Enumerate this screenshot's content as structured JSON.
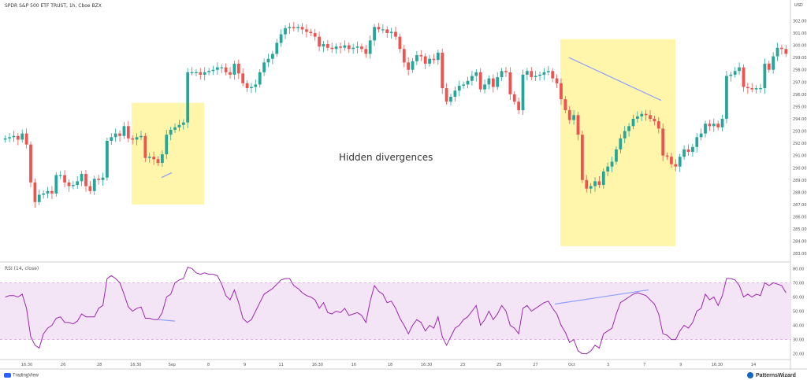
{
  "header": {
    "title": "SPDR S&P 500 ETF TRUST, 1h, Cboe BZX",
    "currency": "USD"
  },
  "rsi": {
    "title": "RSI (14, close)"
  },
  "annotation": "Hidden divergences",
  "footer": {
    "left": "TradingView",
    "right": "PatternsWizard"
  },
  "colors": {
    "up": "#26a69a",
    "down": "#ef5350",
    "highlight": "#fff59d",
    "rsi_band": "#f3e5f5",
    "rsi_line": "#9c27b0",
    "divergence_line": "#8c9eff"
  },
  "chart_data": [
    {
      "type": "candlestick",
      "title": "SPDR S&P 500 ETF TRUST, 1h, Cboe BZX",
      "y_axis_ticks": [
        "302.00",
        "301.00",
        "300.00",
        "299.00",
        "298.00",
        "297.00",
        "296.00",
        "295.00",
        "294.00",
        "293.00",
        "292.00",
        "291.00",
        "290.00",
        "289.00",
        "288.00",
        "287.00",
        "286.00",
        "285.00",
        "284.00",
        "283.00"
      ],
      "x_axis_ticks": [
        "16:30",
        "26",
        "28",
        "16:30",
        "Sep",
        "8",
        "9",
        "11",
        "16:30",
        "16",
        "18",
        "16:30",
        "23",
        "25",
        "27",
        "Oct",
        "3",
        "7",
        "9",
        "16:30",
        "14"
      ],
      "ylim": [
        282.5,
        302.8
      ],
      "close_series": [
        292.4,
        292.5,
        292.6,
        292.3,
        292.8,
        291.9,
        288.8,
        287.2,
        287.8,
        287.9,
        288.1,
        287.9,
        289.4,
        289.4,
        288.8,
        288.5,
        288.6,
        288.9,
        289.5,
        288.5,
        288.1,
        289.1,
        289.0,
        289.2,
        292.2,
        292.5,
        292.8,
        292.6,
        293.4,
        292.4,
        292.3,
        292.5,
        292.6,
        290.8,
        290.9,
        290.7,
        290.4,
        291.1,
        292.7,
        293.1,
        293.3,
        293.5,
        293.7,
        297.8,
        297.8,
        297.8,
        297.6,
        297.8,
        297.9,
        298.0,
        298.2,
        298.2,
        297.8,
        297.6,
        298.5,
        297.7,
        296.9,
        296.5,
        296.6,
        296.8,
        297.8,
        298.6,
        298.9,
        299.3,
        300.2,
        300.9,
        301.4,
        301.5,
        301.4,
        301.5,
        301.3,
        301.1,
        301.0,
        300.7,
        299.9,
        300.1,
        299.8,
        299.7,
        299.9,
        299.8,
        300.0,
        299.7,
        299.8,
        299.9,
        299.7,
        299.3,
        300.4,
        301.5,
        301.3,
        301.3,
        301.0,
        301.1,
        300.7,
        299.7,
        298.6,
        298.0,
        298.7,
        299.2,
        299.1,
        298.5,
        298.9,
        298.8,
        299.4,
        296.5,
        295.4,
        295.8,
        296.3,
        296.7,
        296.8,
        297.1,
        297.5,
        297.8,
        296.4,
        296.8,
        297.3,
        296.6,
        297.4,
        297.9,
        297.8,
        296.0,
        295.4,
        294.7,
        297.6,
        297.9,
        297.4,
        297.5,
        297.6,
        297.8,
        297.9,
        297.3,
        296.9,
        295.6,
        294.7,
        293.9,
        294.3,
        292.7,
        289.0,
        288.3,
        288.5,
        288.9,
        288.6,
        289.7,
        290.1,
        290.5,
        291.5,
        292.4,
        293.0,
        293.4,
        294.0,
        294.2,
        294.4,
        294.3,
        294.0,
        293.8,
        293.2,
        291.0,
        290.9,
        290.3,
        290.1,
        290.9,
        291.5,
        291.3,
        291.7,
        292.5,
        292.8,
        293.6,
        293.4,
        293.6,
        293.3,
        294.0,
        297.5,
        297.6,
        297.9,
        298.2,
        296.6,
        296.5,
        296.4,
        296.5,
        296.5,
        298.5,
        298.0,
        299.1,
        299.8,
        299.7,
        299.3
      ]
    },
    {
      "type": "line",
      "title": "RSI (14, close)",
      "y_axis_ticks": [
        "80.00",
        "70.00",
        "60.00",
        "50.00",
        "40.00",
        "30.00",
        "20.00"
      ],
      "ylim": [
        17,
        83
      ],
      "band": [
        30,
        70
      ],
      "series": [
        {
          "values": [
            60,
            61,
            61,
            60,
            62,
            52,
            32,
            26,
            24,
            34,
            38,
            40,
            45,
            46,
            42,
            42,
            41,
            43,
            48,
            46,
            46,
            46,
            52,
            54,
            73,
            75,
            73,
            70,
            62,
            53,
            50,
            52,
            53,
            45,
            45,
            44,
            44,
            49,
            60,
            62,
            70,
            72,
            73,
            81,
            80,
            77,
            76,
            77,
            76,
            76,
            75,
            69,
            61,
            58,
            65,
            56,
            45,
            42,
            44,
            50,
            56,
            62,
            64,
            66,
            69,
            72,
            73,
            73,
            68,
            66,
            63,
            61,
            60,
            58,
            52,
            56,
            49,
            48,
            50,
            49,
            52,
            47,
            48,
            49,
            47,
            42,
            57,
            68,
            64,
            62,
            56,
            57,
            52,
            45,
            40,
            34,
            40,
            44,
            42,
            36,
            40,
            38,
            46,
            32,
            26,
            32,
            38,
            40,
            44,
            46,
            50,
            54,
            40,
            44,
            50,
            44,
            48,
            54,
            50,
            40,
            38,
            34,
            52,
            54,
            50,
            52,
            54,
            56,
            57,
            52,
            48,
            40,
            35,
            28,
            30,
            22,
            20,
            20,
            22,
            26,
            24,
            34,
            36,
            38,
            48,
            56,
            58,
            60,
            62,
            63,
            62,
            61,
            58,
            55,
            48,
            34,
            33,
            30,
            30,
            36,
            40,
            38,
            42,
            50,
            52,
            62,
            58,
            60,
            54,
            61,
            73,
            73,
            72,
            68,
            60,
            62,
            60,
            62,
            61,
            70,
            68,
            70,
            69,
            68,
            63
          ]
        }
      ]
    }
  ]
}
